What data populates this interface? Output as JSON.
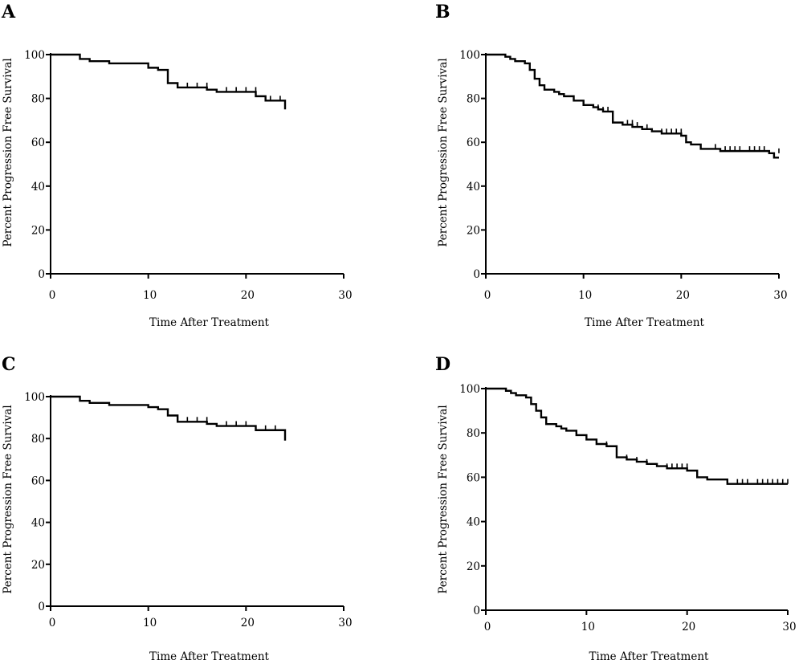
{
  "chart_data": [
    {
      "type": "line",
      "panel": "A",
      "xlabel": "Time After Treatment",
      "ylabel": "Percent  Progression Free Survival",
      "xlim": [
        0,
        30
      ],
      "ylim": [
        0,
        100
      ],
      "xticks": [
        "0",
        "10",
        "20",
        "30"
      ],
      "yticks": [
        "0",
        "20",
        "40",
        "60",
        "80",
        "100"
      ],
      "x": [
        0,
        3,
        4,
        6,
        10,
        11,
        12,
        13,
        16,
        17,
        21,
        22,
        24
      ],
      "y": [
        100,
        98,
        97,
        96,
        94,
        93,
        87,
        85,
        84,
        83,
        81,
        79,
        75
      ],
      "censored_x": [
        14,
        15,
        16,
        18,
        19,
        20,
        21,
        22.5,
        23.5
      ],
      "censored_y": [
        85,
        85,
        85,
        83,
        83,
        83,
        83,
        79,
        79
      ]
    },
    {
      "type": "line",
      "panel": "B",
      "xlabel": "Time After Treatment",
      "ylabel": "Percent  Progression Free Survival",
      "xlim": [
        0,
        30
      ],
      "ylim": [
        0,
        100
      ],
      "xticks": [
        "0",
        "10",
        "20",
        "30"
      ],
      "yticks": [
        "0",
        "20",
        "40",
        "60",
        "80",
        "100"
      ],
      "x": [
        0,
        2,
        2.5,
        3,
        4,
        4.5,
        5,
        5.5,
        6,
        7,
        7.5,
        8,
        9,
        10,
        11,
        11.5,
        12,
        13,
        14,
        15,
        16,
        17,
        18,
        20,
        20.5,
        21,
        22,
        24,
        29,
        29.5,
        30
      ],
      "y": [
        100,
        99,
        98,
        97,
        96,
        93,
        89,
        86,
        84,
        83,
        82,
        81,
        79,
        77,
        76,
        75,
        74,
        69,
        68,
        67,
        66,
        65,
        64,
        63,
        60,
        59,
        57,
        56,
        55,
        53,
        53
      ],
      "censored_x": [
        11.5,
        12,
        12.5,
        14.5,
        15,
        15.5,
        16.5,
        18,
        18.5,
        19,
        19.5,
        20,
        23.5,
        24.5,
        25,
        25.5,
        26,
        27,
        27.5,
        28,
        28.5,
        30
      ],
      "censored_y": [
        75,
        74,
        74,
        68,
        68,
        67,
        66,
        64,
        64,
        64,
        64,
        64,
        57,
        56,
        56,
        56,
        56,
        56,
        56,
        56,
        56,
        55
      ]
    },
    {
      "type": "line",
      "panel": "C",
      "xlabel": "Time After Treatment",
      "ylabel": "Percent  Progression Free Survival",
      "xlim": [
        0,
        30
      ],
      "ylim": [
        0,
        100
      ],
      "xticks": [
        "0",
        "10",
        "20",
        "30"
      ],
      "yticks": [
        "0",
        "20",
        "40",
        "60",
        "80",
        "100"
      ],
      "x": [
        0,
        3,
        4,
        6,
        10,
        11,
        12,
        13,
        16,
        17,
        21,
        24
      ],
      "y": [
        100,
        98,
        97,
        96,
        95,
        94,
        91,
        88,
        87,
        86,
        84,
        79
      ],
      "censored_x": [
        14,
        15,
        16,
        18,
        19,
        20,
        22,
        23
      ],
      "censored_y": [
        88,
        88,
        88,
        86,
        86,
        86,
        84,
        84
      ]
    },
    {
      "type": "line",
      "panel": "D",
      "xlabel": "Time After Treatment",
      "ylabel": "Percent  Progression Free Survival",
      "xlim": [
        0,
        30
      ],
      "ylim": [
        0,
        100
      ],
      "xticks": [
        "0",
        "10",
        "20",
        "30"
      ],
      "yticks": [
        "0",
        "20",
        "40",
        "60",
        "80",
        "100"
      ],
      "x": [
        0,
        2,
        2.5,
        3,
        4,
        4.5,
        5,
        5.5,
        6,
        7,
        7.5,
        8,
        9,
        10,
        11,
        12,
        13,
        14,
        15,
        16,
        17,
        18,
        20,
        21,
        22,
        24,
        30
      ],
      "y": [
        100,
        99,
        98,
        97,
        96,
        93,
        90,
        87,
        84,
        83,
        82,
        81,
        79,
        77,
        75,
        74,
        69,
        68,
        67,
        66,
        65,
        64,
        63,
        60,
        59,
        57,
        57
      ],
      "censored_x": [
        11,
        12,
        14,
        15,
        16,
        18,
        18.5,
        19,
        19.5,
        20,
        25,
        25.5,
        26,
        27,
        27.5,
        28,
        28.5,
        29,
        29.5,
        30
      ],
      "censored_y": [
        75,
        74,
        68,
        67,
        66,
        64,
        64,
        64,
        64,
        64,
        57,
        57,
        57,
        57,
        57,
        57,
        57,
        57,
        57,
        57
      ]
    }
  ]
}
